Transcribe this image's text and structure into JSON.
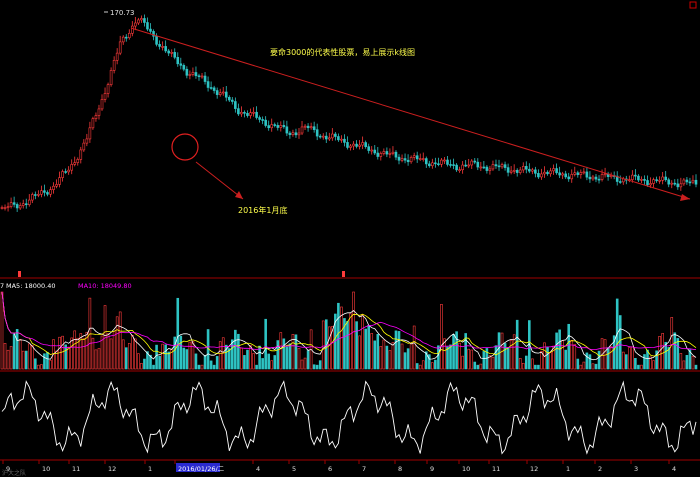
{
  "price_panel": {
    "peak_label": "170.73",
    "title_note": "要命3000的代表性股票，易上展示k线图",
    "annotation_label": "2016年1月底"
  },
  "volume_panel": {
    "legend_prefix": "7",
    "ma5_label": "MA5: 18000.40",
    "ma10_label": "MA10: 18049.80"
  },
  "time_axis": {
    "labels": [
      "9",
      "10",
      "11",
      "12",
      "1",
      "2016/01/26/二",
      "4",
      "5",
      "6",
      "7",
      "8",
      "9",
      "10",
      "11",
      "12",
      "1",
      "2",
      "3",
      "4"
    ],
    "highlighted": "2016/01/26/二"
  },
  "footer": {
    "left_text": "沪大之队"
  },
  "colors": {
    "up": "#ff3b3b",
    "down": "#2ec4c4",
    "ma5": "#ffffff",
    "ma10": "#ffff00",
    "ma20": "#ff00ff",
    "trend_arrow": "#cc1f1f",
    "circle": "#e02020",
    "text_yellow": "#ffff4c",
    "axis_red": "#a00000",
    "indicator": "#ffffff",
    "axis_highlight": "#2a2ad0"
  },
  "chart_data": {
    "type": "candlestick",
    "price_series": [
      20,
      24,
      30,
      38,
      52,
      75,
      110,
      150,
      170.73,
      155,
      140,
      128,
      120,
      110,
      98,
      92,
      86,
      80,
      84,
      78,
      74,
      70,
      66,
      62,
      60,
      58,
      56,
      54,
      55,
      53,
      52,
      50,
      49,
      48,
      47,
      46,
      45,
      44,
      43,
      42,
      41,
      40
    ],
    "peak_value": 170.73
  }
}
